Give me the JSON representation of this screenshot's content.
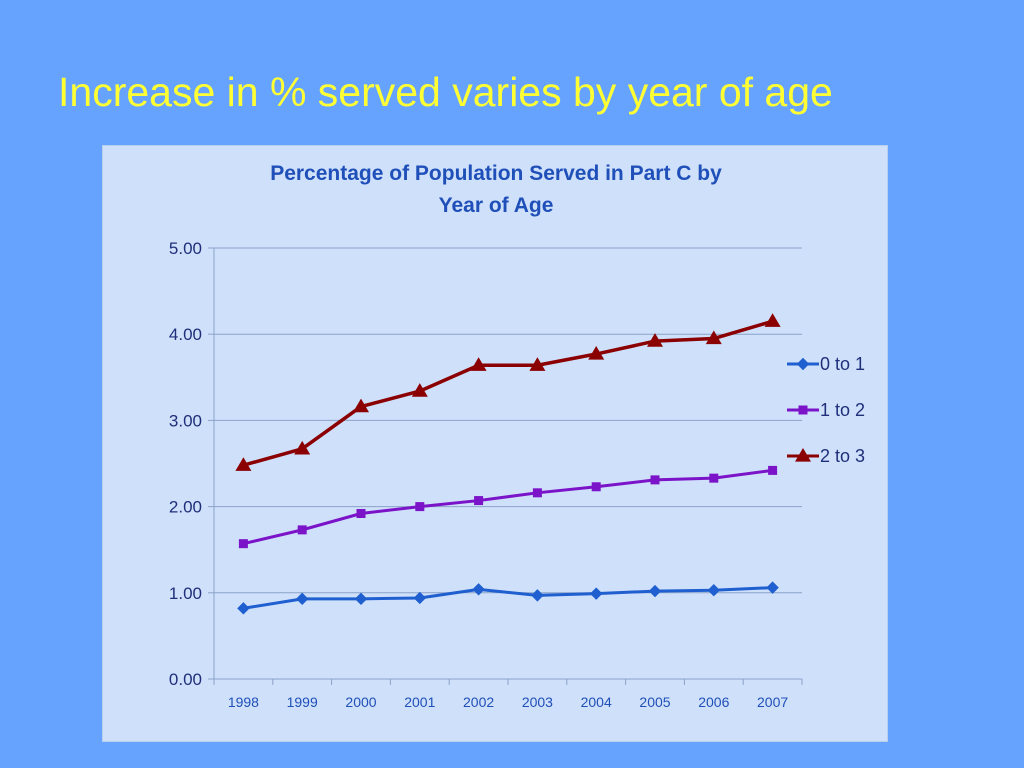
{
  "slide": {
    "title": "Increase in % served varies by year of age"
  },
  "chart_data": {
    "type": "line",
    "title": [
      "Percentage of Population Served in Part C by",
      "Year of Age"
    ],
    "xlabel": "",
    "ylabel": "",
    "categories": [
      "1998",
      "1999",
      "2000",
      "2001",
      "2002",
      "2003",
      "2004",
      "2005",
      "2006",
      "2007"
    ],
    "ylim": [
      0,
      5
    ],
    "yticks": [
      "0.00",
      "1.00",
      "2.00",
      "3.00",
      "4.00",
      "5.00"
    ],
    "grid": true,
    "legend_position": "right",
    "series": [
      {
        "name": "0 to 1",
        "values": [
          0.82,
          0.93,
          0.93,
          0.94,
          1.04,
          0.97,
          0.99,
          1.02,
          1.03,
          1.06
        ],
        "color": "#1f5fcf",
        "marker": "diamond"
      },
      {
        "name": "1 to 2",
        "values": [
          1.57,
          1.73,
          1.92,
          2.0,
          2.07,
          2.16,
          2.23,
          2.31,
          2.33,
          2.42
        ],
        "color": "#7b14c8",
        "marker": "square"
      },
      {
        "name": "2 to 3",
        "values": [
          2.48,
          2.67,
          3.16,
          3.34,
          3.64,
          3.64,
          3.77,
          3.92,
          3.95,
          4.15
        ],
        "color": "#8b0000",
        "marker": "triangle"
      }
    ]
  }
}
